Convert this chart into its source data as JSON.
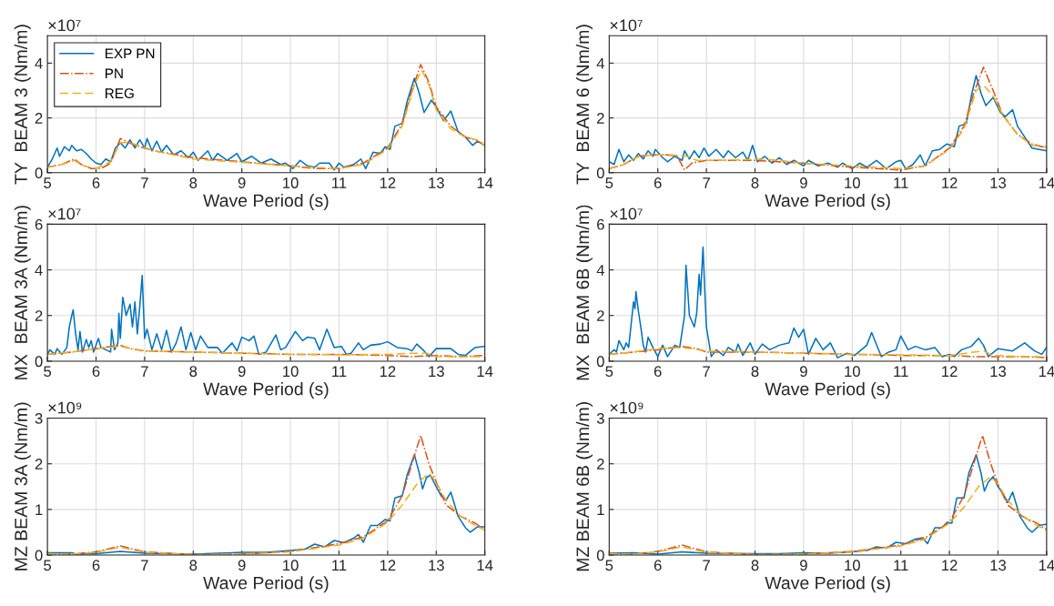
{
  "chart_data": [
    {
      "type": "line",
      "xlabel": "Wave Period (s)",
      "ylabel": "TY  BEAM 3 (Nm/m)",
      "annotations": [
        "×10⁷"
      ],
      "xlim": [
        5,
        14
      ],
      "xticks": [
        5,
        6,
        7,
        8,
        9,
        10,
        11,
        12,
        13,
        14
      ],
      "ylim": [
        0,
        5
      ],
      "yticks": [
        0,
        2,
        4
      ],
      "grid": true,
      "legend": "top left",
      "series": [
        {
          "name": "EXP PN",
          "color": "#0072bd",
          "line_style": "solid",
          "x": [
            5.0,
            5.1,
            5.2,
            5.25,
            5.35,
            5.45,
            5.5,
            5.6,
            5.7,
            5.8,
            5.9,
            6.0,
            6.1,
            6.2,
            6.3,
            6.4,
            6.5,
            6.6,
            6.7,
            6.8,
            6.9,
            7.0,
            7.05,
            7.15,
            7.25,
            7.35,
            7.45,
            7.6,
            7.75,
            7.9,
            8.0,
            8.1,
            8.3,
            8.4,
            8.5,
            8.7,
            8.9,
            9.0,
            9.2,
            9.4,
            9.6,
            9.8,
            9.9,
            10.05,
            10.2,
            10.35,
            10.5,
            10.6,
            10.8,
            10.9,
            11.0,
            11.1,
            11.3,
            11.45,
            11.55,
            11.7,
            11.85,
            11.95,
            12.05,
            12.15,
            12.3,
            12.4,
            12.55,
            12.65,
            12.75,
            12.9,
            13.0,
            13.15,
            13.3,
            13.45,
            13.6,
            13.75,
            13.85,
            14.0
          ],
          "values": [
            0.2,
            0.5,
            0.9,
            0.6,
            0.95,
            0.8,
            1.0,
            0.8,
            0.85,
            0.7,
            0.5,
            0.35,
            0.3,
            0.5,
            0.4,
            0.9,
            1.1,
            0.9,
            1.2,
            0.9,
            1.2,
            0.9,
            1.25,
            0.8,
            1.15,
            0.75,
            1.0,
            0.65,
            0.8,
            0.55,
            0.75,
            0.45,
            0.8,
            0.45,
            0.7,
            0.45,
            0.7,
            0.4,
            0.6,
            0.35,
            0.5,
            0.3,
            0.35,
            0.15,
            0.45,
            0.25,
            0.2,
            0.35,
            0.35,
            0.1,
            0.35,
            0.2,
            0.3,
            0.5,
            0.15,
            0.75,
            0.7,
            0.95,
            0.85,
            1.7,
            1.8,
            2.6,
            3.45,
            2.9,
            2.2,
            2.65,
            2.4,
            1.9,
            2.25,
            1.5,
            1.3,
            1.0,
            1.15,
            1.0
          ]
        },
        {
          "name": "PN",
          "color": "#d95319",
          "line_style": "dashdot",
          "x": [
            5.0,
            5.3,
            5.55,
            5.7,
            5.9,
            6.1,
            6.3,
            6.5,
            6.8,
            7.2,
            8.0,
            9.0,
            10.0,
            10.5,
            11.0,
            11.5,
            12.0,
            12.3,
            12.5,
            12.68,
            12.85,
            13.0,
            13.3,
            13.6,
            13.8,
            14.0
          ],
          "values": [
            0.2,
            0.3,
            0.5,
            0.3,
            0.15,
            0.15,
            0.35,
            1.25,
            1.0,
            0.8,
            0.55,
            0.4,
            0.25,
            0.15,
            0.15,
            0.35,
            0.9,
            1.8,
            3.0,
            3.95,
            3.3,
            2.4,
            1.7,
            1.3,
            1.2,
            1.0
          ]
        },
        {
          "name": "REG",
          "color": "#edb120",
          "line_style": "dashed",
          "x": [
            5.0,
            5.3,
            5.55,
            5.75,
            6.0,
            6.3,
            6.5,
            6.7,
            7.2,
            8.0,
            9.0,
            10.0,
            11.0,
            11.5,
            12.0,
            12.3,
            12.55,
            12.7,
            12.85,
            13.0,
            13.3,
            13.6,
            13.85,
            14.0
          ],
          "values": [
            0.2,
            0.3,
            0.45,
            0.25,
            0.15,
            0.4,
            1.1,
            1.1,
            0.8,
            0.5,
            0.38,
            0.25,
            0.15,
            0.3,
            0.85,
            1.7,
            3.2,
            3.75,
            3.2,
            2.3,
            1.6,
            1.3,
            1.2,
            1.0
          ]
        }
      ]
    },
    {
      "type": "line",
      "xlabel": "Wave Period (s)",
      "ylabel": "TY  BEAM 6 (Nm/m)",
      "annotations": [
        "×10⁷"
      ],
      "xlim": [
        5,
        14
      ],
      "xticks": [
        5,
        6,
        7,
        8,
        9,
        10,
        11,
        12,
        13,
        14
      ],
      "ylim": [
        0,
        5
      ],
      "yticks": [
        0,
        2,
        4
      ],
      "grid": true,
      "series": [
        {
          "color": "#0072bd",
          "line_style": "solid",
          "x": [
            5.0,
            5.1,
            5.2,
            5.3,
            5.4,
            5.5,
            5.6,
            5.7,
            5.8,
            5.9,
            5.95,
            6.1,
            6.2,
            6.35,
            6.5,
            6.55,
            6.65,
            6.75,
            6.85,
            6.95,
            7.05,
            7.2,
            7.35,
            7.45,
            7.6,
            7.75,
            7.85,
            7.95,
            8.05,
            8.2,
            8.35,
            8.5,
            8.65,
            8.8,
            9.0,
            9.1,
            9.3,
            9.5,
            9.7,
            9.8,
            10.0,
            10.15,
            10.3,
            10.5,
            10.7,
            10.9,
            11.0,
            11.1,
            11.25,
            11.4,
            11.5,
            11.65,
            11.8,
            11.95,
            12.1,
            12.2,
            12.35,
            12.45,
            12.55,
            12.65,
            12.75,
            12.9,
            13.05,
            13.15,
            13.3,
            13.4,
            13.55,
            13.7,
            13.85,
            14.0
          ],
          "values": [
            0.4,
            0.3,
            0.85,
            0.4,
            0.65,
            0.45,
            0.7,
            0.5,
            0.8,
            0.6,
            0.85,
            0.55,
            0.4,
            0.6,
            0.45,
            0.8,
            0.5,
            0.8,
            0.55,
            0.9,
            0.6,
            0.85,
            0.55,
            0.8,
            0.55,
            0.75,
            0.45,
            1.0,
            0.4,
            0.6,
            0.35,
            0.55,
            0.3,
            0.45,
            0.25,
            0.45,
            0.25,
            0.35,
            0.2,
            0.35,
            0.15,
            0.35,
            0.2,
            0.45,
            0.15,
            0.4,
            0.45,
            0.15,
            0.3,
            0.65,
            0.25,
            0.8,
            0.85,
            1.05,
            0.95,
            1.7,
            1.8,
            2.8,
            3.55,
            2.9,
            2.45,
            2.75,
            2.2,
            2.05,
            2.3,
            1.7,
            1.3,
            0.9,
            0.85,
            0.8
          ]
        },
        {
          "color": "#d95319",
          "line_style": "dashdot",
          "x": [
            5.0,
            5.3,
            5.6,
            5.9,
            6.2,
            6.4,
            6.55,
            6.7,
            7.0,
            8.0,
            9.0,
            10.0,
            10.5,
            11.0,
            11.5,
            12.0,
            12.3,
            12.5,
            12.7,
            12.9,
            13.1,
            13.4,
            13.7,
            14.0
          ],
          "values": [
            0.15,
            0.3,
            0.6,
            0.65,
            0.65,
            0.6,
            0.1,
            0.35,
            0.45,
            0.45,
            0.35,
            0.2,
            0.15,
            0.1,
            0.25,
            0.9,
            1.7,
            2.9,
            3.85,
            3.0,
            2.1,
            1.4,
            1.05,
            0.9
          ]
        },
        {
          "color": "#edb120",
          "line_style": "dashed",
          "x": [
            5.0,
            5.3,
            5.6,
            5.9,
            6.3,
            6.6,
            6.8,
            7.2,
            8.2,
            9.0,
            10.0,
            11.0,
            11.5,
            12.0,
            12.3,
            12.55,
            12.7,
            12.9,
            13.1,
            13.4,
            13.7,
            14.0
          ],
          "values": [
            0.15,
            0.3,
            0.6,
            0.65,
            0.65,
            0.6,
            0.45,
            0.45,
            0.5,
            0.35,
            0.25,
            0.15,
            0.25,
            0.85,
            1.6,
            3.0,
            3.2,
            2.8,
            2.1,
            1.4,
            1.0,
            0.95
          ]
        }
      ]
    },
    {
      "type": "line",
      "xlabel": "Wave Period (s)",
      "ylabel": "MX  BEAM 3A (Nm/m)",
      "annotations": [
        "×10⁷"
      ],
      "xlim": [
        5,
        14
      ],
      "xticks": [
        5,
        6,
        7,
        8,
        9,
        10,
        11,
        12,
        13,
        14
      ],
      "ylim": [
        0,
        6
      ],
      "yticks": [
        0,
        2,
        4,
        6
      ],
      "grid": true,
      "series": [
        {
          "color": "#0072bd",
          "line_style": "solid",
          "x": [
            5.0,
            5.05,
            5.15,
            5.2,
            5.3,
            5.4,
            5.45,
            5.5,
            5.53,
            5.58,
            5.63,
            5.67,
            5.72,
            5.8,
            5.85,
            5.9,
            5.95,
            6.05,
            6.1,
            6.2,
            6.3,
            6.32,
            6.38,
            6.45,
            6.47,
            6.5,
            6.55,
            6.62,
            6.7,
            6.75,
            6.8,
            6.85,
            6.9,
            6.95,
            7.0,
            7.05,
            7.15,
            7.25,
            7.35,
            7.45,
            7.55,
            7.65,
            7.75,
            7.85,
            7.95,
            8.05,
            8.15,
            8.3,
            8.5,
            8.6,
            8.8,
            8.9,
            9.0,
            9.15,
            9.25,
            9.35,
            9.5,
            9.7,
            9.8,
            9.9,
            10.1,
            10.25,
            10.35,
            10.5,
            10.6,
            10.75,
            10.9,
            11.05,
            11.15,
            11.25,
            11.4,
            11.5,
            11.65,
            11.85,
            12.0,
            12.2,
            12.4,
            12.5,
            12.6,
            12.75,
            12.85,
            13.0,
            13.3,
            13.45,
            13.6,
            13.8,
            14.0
          ],
          "values": [
            0.3,
            0.5,
            0.3,
            0.55,
            0.3,
            0.6,
            1.5,
            2.0,
            2.25,
            1.2,
            0.5,
            1.3,
            0.4,
            0.95,
            0.6,
            0.9,
            0.4,
            1.0,
            0.6,
            0.5,
            0.4,
            1.4,
            0.5,
            0.8,
            2.1,
            1.0,
            2.8,
            2.0,
            2.5,
            1.5,
            2.6,
            1.2,
            2.4,
            3.75,
            1.0,
            1.4,
            0.5,
            1.2,
            0.5,
            1.35,
            0.4,
            0.8,
            1.5,
            0.5,
            1.25,
            0.5,
            1.1,
            0.6,
            0.6,
            0.35,
            0.8,
            0.45,
            1.05,
            0.9,
            1.1,
            0.3,
            0.4,
            1.15,
            0.5,
            0.6,
            1.3,
            0.9,
            1.05,
            1.0,
            0.5,
            1.4,
            0.6,
            0.65,
            0.3,
            0.35,
            0.8,
            0.5,
            0.7,
            0.75,
            0.85,
            0.6,
            0.55,
            0.45,
            0.75,
            0.45,
            0.2,
            0.55,
            0.55,
            0.3,
            0.25,
            0.6,
            0.65
          ]
        },
        {
          "color": "#d95319",
          "line_style": "dashdot",
          "x": [
            5.0,
            5.5,
            6.0,
            6.5,
            6.7,
            7.0,
            8.0,
            9.0,
            10.0,
            11.0,
            12.0,
            12.5,
            13.0,
            13.5,
            14.0
          ],
          "values": [
            0.3,
            0.4,
            0.55,
            0.7,
            0.55,
            0.45,
            0.4,
            0.35,
            0.3,
            0.3,
            0.25,
            0.2,
            0.25,
            0.2,
            0.25
          ]
        },
        {
          "color": "#edb120",
          "line_style": "dashed",
          "x": [
            5.0,
            5.5,
            6.0,
            6.5,
            7.0,
            8.0,
            9.0,
            10.0,
            11.0,
            12.0,
            12.5,
            12.8,
            13.0,
            13.5,
            14.0
          ],
          "values": [
            0.3,
            0.4,
            0.55,
            0.65,
            0.45,
            0.4,
            0.35,
            0.3,
            0.28,
            0.3,
            0.35,
            0.35,
            0.2,
            0.2,
            0.2
          ]
        }
      ]
    },
    {
      "type": "line",
      "xlabel": "Wave Period (s)",
      "ylabel": "MX  BEAM 6B (Nm/m)",
      "annotations": [
        "×10⁷"
      ],
      "xlim": [
        5,
        14
      ],
      "xticks": [
        5,
        6,
        7,
        8,
        9,
        10,
        11,
        12,
        13,
        14
      ],
      "ylim": [
        0,
        6
      ],
      "yticks": [
        0,
        2,
        4,
        6
      ],
      "grid": true,
      "series": [
        {
          "color": "#0072bd",
          "line_style": "solid",
          "x": [
            5.0,
            5.1,
            5.15,
            5.2,
            5.3,
            5.35,
            5.4,
            5.45,
            5.5,
            5.53,
            5.55,
            5.6,
            5.65,
            5.7,
            5.75,
            5.8,
            5.9,
            6.0,
            6.1,
            6.2,
            6.35,
            6.45,
            6.55,
            6.58,
            6.65,
            6.75,
            6.8,
            6.85,
            6.88,
            6.93,
            6.97,
            7.0,
            7.1,
            7.2,
            7.35,
            7.45,
            7.6,
            7.65,
            7.75,
            7.9,
            8.0,
            8.15,
            8.3,
            8.5,
            8.7,
            8.8,
            8.9,
            9.0,
            9.1,
            9.25,
            9.4,
            9.55,
            9.7,
            9.9,
            10.05,
            10.3,
            10.4,
            10.6,
            10.75,
            10.9,
            11.0,
            11.15,
            11.3,
            11.5,
            11.7,
            11.85,
            12.0,
            12.1,
            12.25,
            12.45,
            12.6,
            12.7,
            12.8,
            13.0,
            13.3,
            13.55,
            13.75,
            13.9,
            14.0
          ],
          "values": [
            0.3,
            0.5,
            0.4,
            0.9,
            0.5,
            0.8,
            0.6,
            1.6,
            2.6,
            2.3,
            3.05,
            2.2,
            1.5,
            0.7,
            0.4,
            1.05,
            0.6,
            0.2,
            0.7,
            0.2,
            0.7,
            0.6,
            2.0,
            4.2,
            2.0,
            1.5,
            2.1,
            3.8,
            2.9,
            5.0,
            2.9,
            1.5,
            0.2,
            0.5,
            0.25,
            0.6,
            0.4,
            0.75,
            0.25,
            0.8,
            0.3,
            0.75,
            0.5,
            0.7,
            0.8,
            1.45,
            1.05,
            1.4,
            0.3,
            1.0,
            0.5,
            0.8,
            0.15,
            0.35,
            0.25,
            0.7,
            1.25,
            0.2,
            0.4,
            0.5,
            1.1,
            0.5,
            0.65,
            0.5,
            0.6,
            0.2,
            0.3,
            0.2,
            0.5,
            0.65,
            1.0,
            0.7,
            0.2,
            0.55,
            0.45,
            0.8,
            0.45,
            0.3,
            0.6
          ]
        },
        {
          "color": "#d95319",
          "line_style": "dashdot",
          "x": [
            5.0,
            5.5,
            6.0,
            6.5,
            6.8,
            7.0,
            8.0,
            9.0,
            10.0,
            11.0,
            12.0,
            12.5,
            13.0,
            13.5,
            14.0
          ],
          "values": [
            0.3,
            0.4,
            0.5,
            0.65,
            0.55,
            0.4,
            0.4,
            0.35,
            0.3,
            0.25,
            0.25,
            0.2,
            0.2,
            0.2,
            0.15
          ]
        },
        {
          "color": "#edb120",
          "line_style": "dashed",
          "x": [
            5.0,
            5.5,
            6.0,
            6.5,
            7.0,
            8.0,
            9.0,
            10.0,
            11.0,
            12.0,
            12.5,
            12.7,
            12.9,
            13.5,
            14.0
          ],
          "values": [
            0.3,
            0.4,
            0.55,
            0.6,
            0.45,
            0.4,
            0.35,
            0.3,
            0.28,
            0.25,
            0.4,
            0.45,
            0.25,
            0.2,
            0.2
          ]
        }
      ]
    },
    {
      "type": "line",
      "xlabel": "Wave Period (s)",
      "ylabel": "MZ BEAM 3A (Nm/m)",
      "annotations": [
        "×10⁹"
      ],
      "xlim": [
        5,
        14
      ],
      "xticks": [
        5,
        6,
        7,
        8,
        9,
        10,
        11,
        12,
        13,
        14
      ],
      "ylim": [
        0,
        3
      ],
      "yticks": [
        0,
        1,
        2,
        3
      ],
      "grid": true,
      "series": [
        {
          "color": "#0072bd",
          "line_style": "solid",
          "x": [
            5.0,
            5.5,
            5.6,
            6.0,
            6.5,
            7.0,
            8.0,
            8.5,
            9.0,
            9.5,
            10.0,
            10.3,
            10.5,
            10.7,
            10.9,
            11.1,
            11.3,
            11.4,
            11.5,
            11.65,
            11.8,
            11.95,
            12.05,
            12.15,
            12.3,
            12.4,
            12.55,
            12.65,
            12.72,
            12.8,
            12.88,
            13.0,
            13.1,
            13.2,
            13.3,
            13.45,
            13.6,
            13.7,
            13.85,
            14.0
          ],
          "values": [
            0.05,
            0.05,
            0.02,
            0.03,
            0.08,
            0.04,
            0.02,
            0.04,
            0.06,
            0.06,
            0.1,
            0.13,
            0.24,
            0.18,
            0.32,
            0.27,
            0.37,
            0.45,
            0.28,
            0.65,
            0.65,
            0.78,
            0.75,
            1.25,
            1.3,
            1.75,
            2.2,
            1.8,
            1.45,
            1.7,
            1.75,
            1.5,
            1.3,
            1.2,
            1.38,
            0.85,
            0.6,
            0.5,
            0.62,
            0.62
          ]
        },
        {
          "color": "#d95319",
          "line_style": "dashdot",
          "x": [
            5.0,
            5.5,
            6.0,
            6.5,
            7.0,
            8.0,
            9.0,
            10.0,
            11.0,
            11.5,
            12.0,
            12.3,
            12.5,
            12.68,
            12.85,
            13.0,
            13.2,
            13.5,
            13.8,
            14.0
          ],
          "values": [
            0.03,
            0.02,
            0.07,
            0.2,
            0.07,
            0.01,
            0.02,
            0.08,
            0.25,
            0.4,
            0.75,
            1.3,
            2.0,
            2.62,
            2.0,
            1.6,
            1.1,
            0.85,
            0.7,
            0.55
          ]
        },
        {
          "color": "#edb120",
          "line_style": "dashed",
          "x": [
            5.0,
            5.5,
            6.0,
            6.5,
            7.0,
            8.0,
            9.0,
            10.0,
            11.0,
            11.5,
            12.0,
            12.3,
            12.6,
            12.85,
            13.0,
            13.2,
            13.5,
            13.8,
            14.0
          ],
          "values": [
            0.03,
            0.02,
            0.06,
            0.17,
            0.06,
            0.01,
            0.02,
            0.07,
            0.22,
            0.37,
            0.72,
            1.1,
            1.55,
            1.8,
            1.6,
            1.2,
            0.85,
            0.65,
            0.55
          ]
        }
      ]
    },
    {
      "type": "line",
      "xlabel": "Wave Period (s)",
      "ylabel": "MZ BEAM 6B (Nm/m)",
      "annotations": [
        "×10⁹"
      ],
      "xlim": [
        5,
        14
      ],
      "xticks": [
        5,
        6,
        7,
        8,
        9,
        10,
        11,
        12,
        13,
        14
      ],
      "ylim": [
        0,
        3
      ],
      "yticks": [
        0,
        1,
        2,
        3
      ],
      "grid": true,
      "series": [
        {
          "color": "#0072bd",
          "line_style": "solid",
          "x": [
            5.0,
            5.5,
            6.0,
            6.5,
            7.0,
            8.0,
            8.5,
            9.0,
            9.5,
            10.0,
            10.3,
            10.5,
            10.7,
            10.9,
            11.1,
            11.3,
            11.45,
            11.55,
            11.7,
            11.85,
            11.95,
            12.05,
            12.15,
            12.3,
            12.4,
            12.55,
            12.65,
            12.72,
            12.8,
            12.9,
            13.0,
            13.1,
            13.2,
            13.3,
            13.45,
            13.6,
            13.7,
            13.85,
            14.0
          ],
          "values": [
            0.04,
            0.05,
            0.02,
            0.07,
            0.04,
            0.03,
            0.03,
            0.05,
            0.04,
            0.07,
            0.1,
            0.18,
            0.15,
            0.28,
            0.25,
            0.35,
            0.38,
            0.25,
            0.6,
            0.6,
            0.72,
            0.7,
            1.25,
            1.25,
            1.8,
            2.2,
            1.8,
            1.4,
            1.6,
            1.72,
            1.5,
            1.35,
            1.15,
            1.38,
            0.85,
            0.6,
            0.5,
            0.65,
            0.68
          ]
        },
        {
          "color": "#d95319",
          "line_style": "dashdot",
          "x": [
            5.0,
            5.5,
            6.0,
            6.5,
            7.0,
            8.0,
            9.0,
            10.0,
            11.0,
            11.5,
            12.0,
            12.3,
            12.5,
            12.68,
            12.85,
            13.0,
            13.2,
            13.5,
            13.8,
            14.0
          ],
          "values": [
            0.03,
            0.02,
            0.08,
            0.22,
            0.07,
            0.01,
            0.02,
            0.08,
            0.22,
            0.38,
            0.72,
            1.3,
            2.0,
            2.62,
            2.0,
            1.55,
            1.1,
            0.85,
            0.7,
            0.55
          ]
        },
        {
          "color": "#edb120",
          "line_style": "dashed",
          "x": [
            5.0,
            5.5,
            6.0,
            6.5,
            7.0,
            8.0,
            9.0,
            10.0,
            11.0,
            11.5,
            12.0,
            12.3,
            12.6,
            12.85,
            13.0,
            13.2,
            13.5,
            13.8,
            14.0
          ],
          "values": [
            0.03,
            0.02,
            0.07,
            0.18,
            0.06,
            0.01,
            0.02,
            0.07,
            0.2,
            0.35,
            0.7,
            1.05,
            1.5,
            1.72,
            1.55,
            1.2,
            0.85,
            0.65,
            0.55
          ]
        }
      ]
    }
  ]
}
